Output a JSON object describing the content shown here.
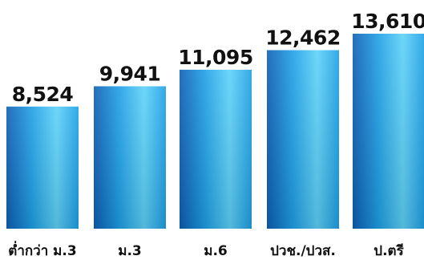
{
  "chart_data": {
    "type": "bar",
    "categories": [
      "ต่ำกว่า ม.3",
      "ม.3",
      "ม.6",
      "ปวช./ปวส.",
      "ป.ตรี"
    ],
    "values": [
      8524,
      9941,
      11095,
      12462,
      13610
    ],
    "value_labels": [
      "8,524",
      "9,941",
      "11,095",
      "12,462",
      "13,610"
    ],
    "title": "",
    "xlabel": "",
    "ylabel": "",
    "ylim": [
      0,
      13610
    ],
    "grid": false,
    "legend": "none",
    "bar_color_light": "#5ed2f7",
    "bar_color_mid": "#1e9fe6",
    "bar_color_dark": "#0d5fb3"
  }
}
